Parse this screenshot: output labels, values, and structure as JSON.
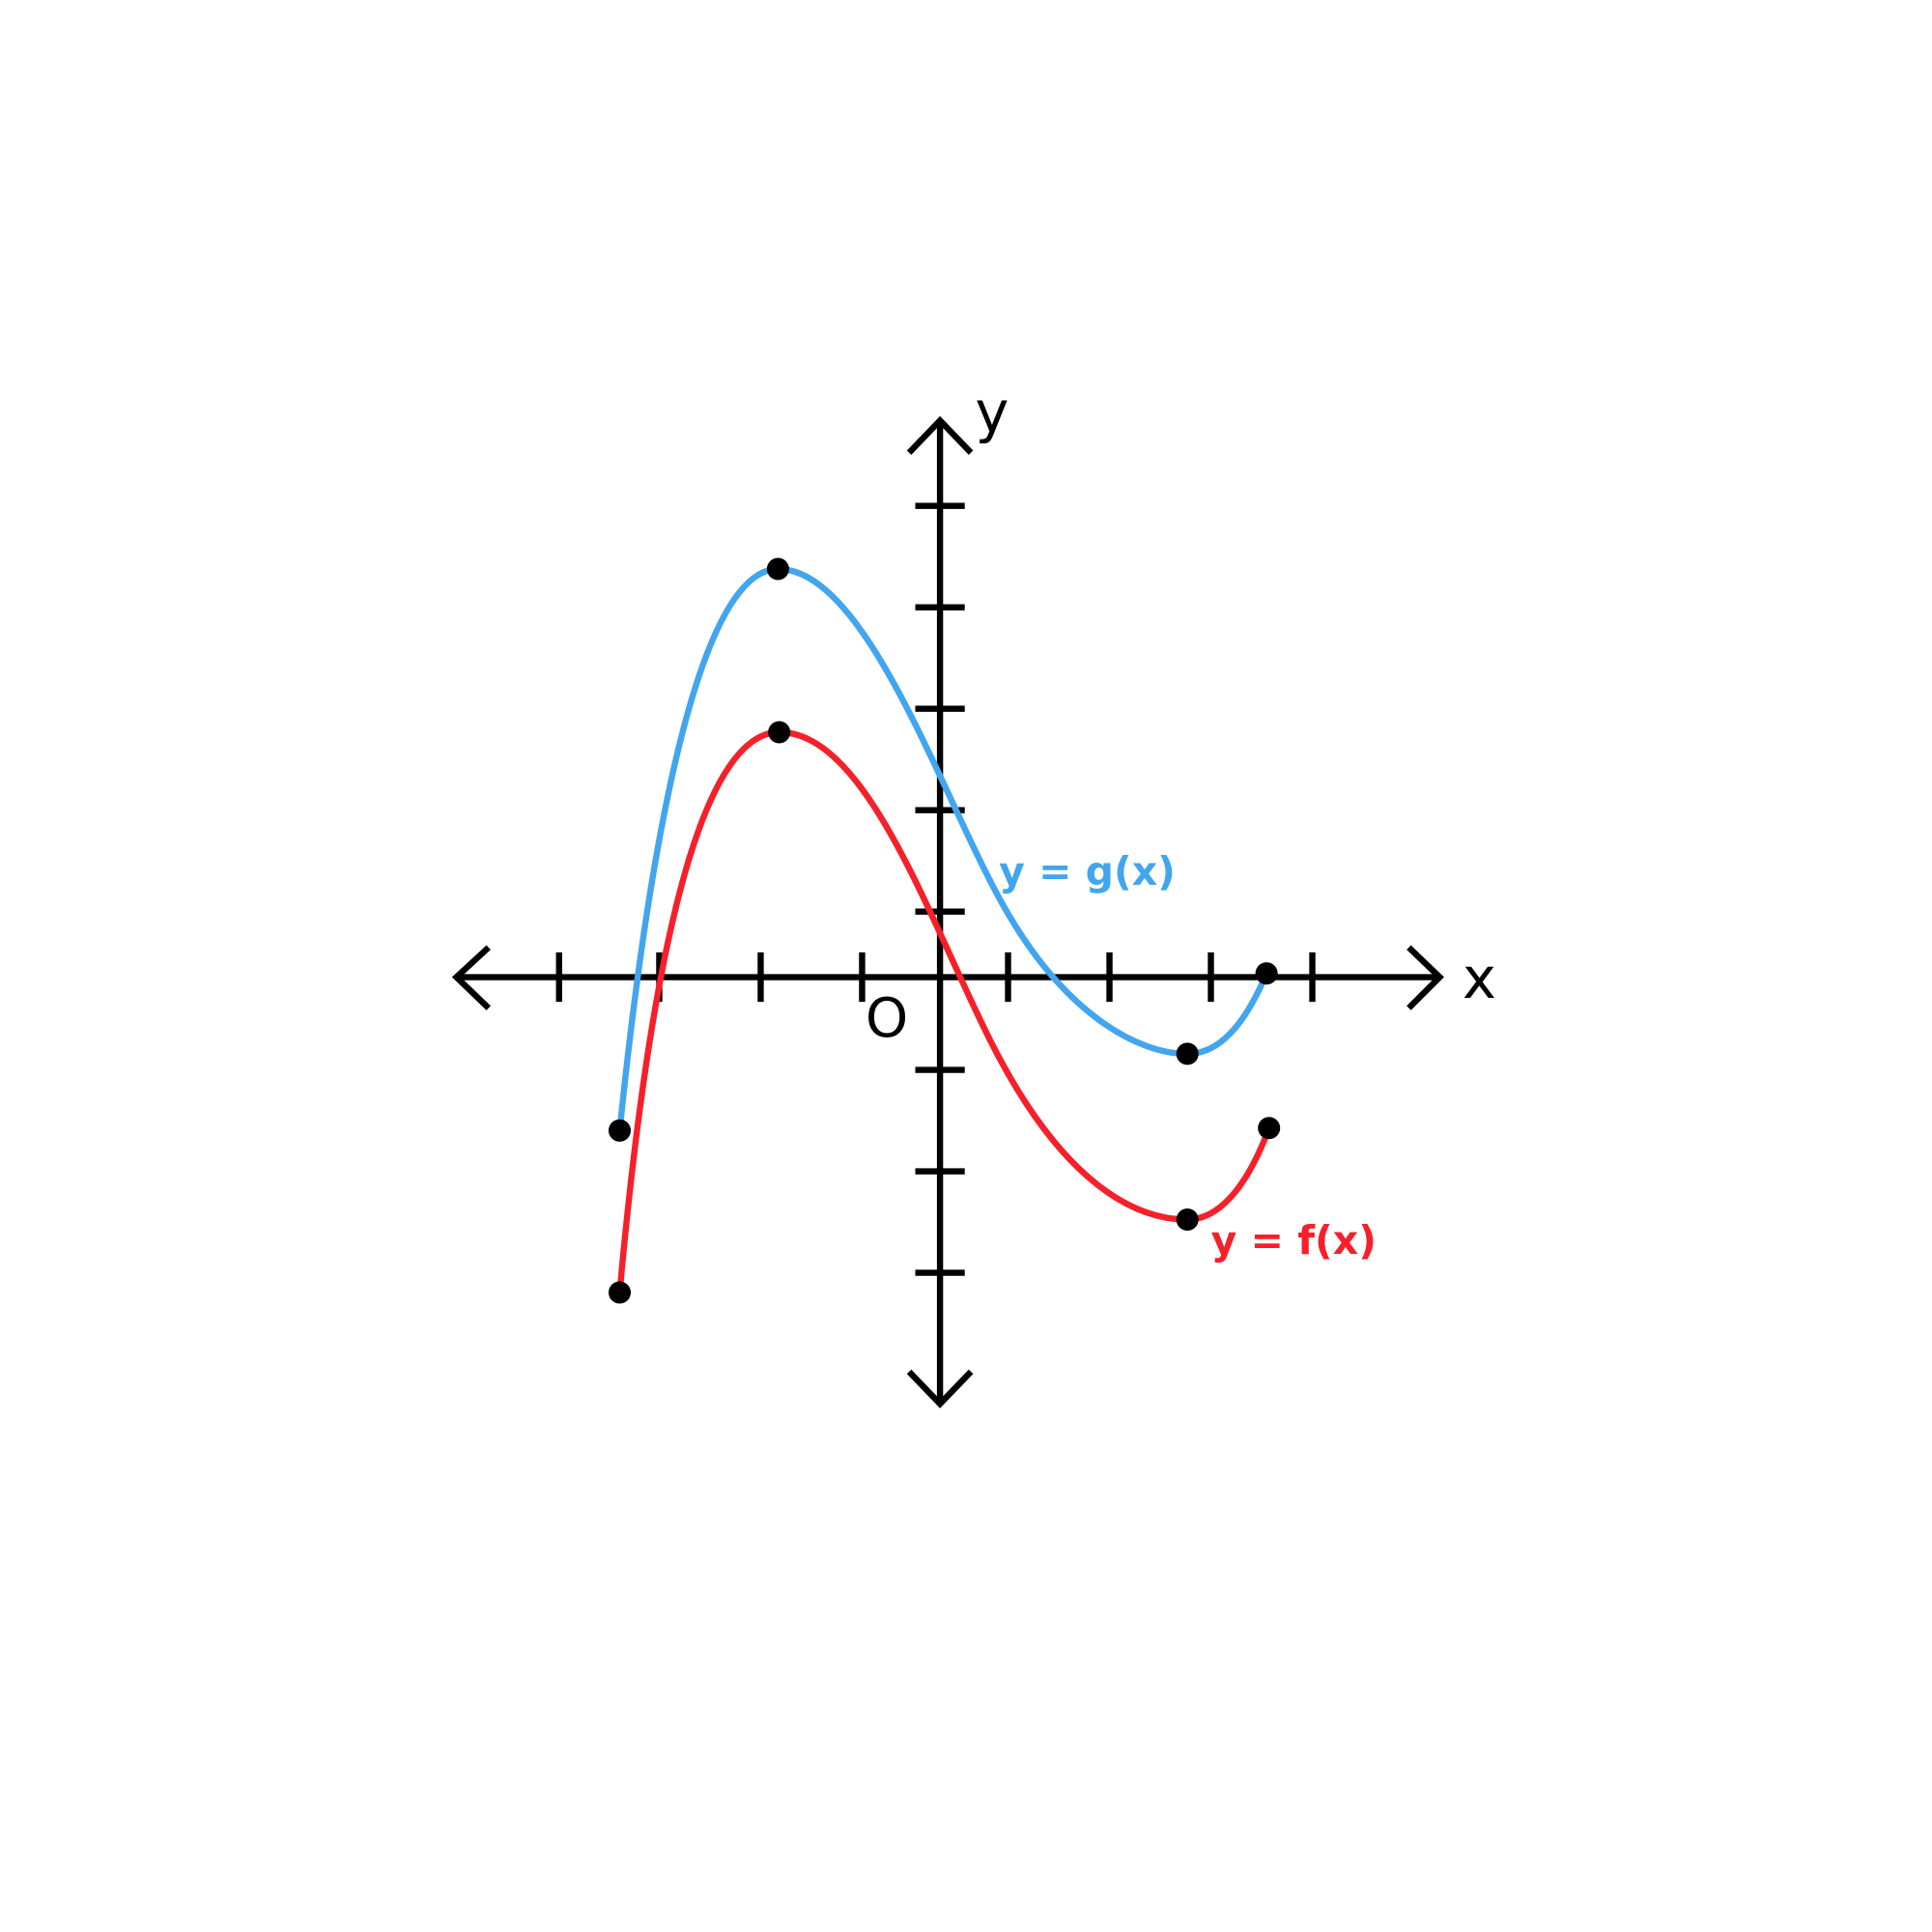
{
  "axes": {
    "x_label": "x",
    "y_label": "y",
    "origin_label": "O"
  },
  "curves": [
    {
      "label": "y = g(x)",
      "color": "#42a5ef"
    },
    {
      "label": "y = f(x)",
      "color": "#f5202a"
    }
  ]
}
